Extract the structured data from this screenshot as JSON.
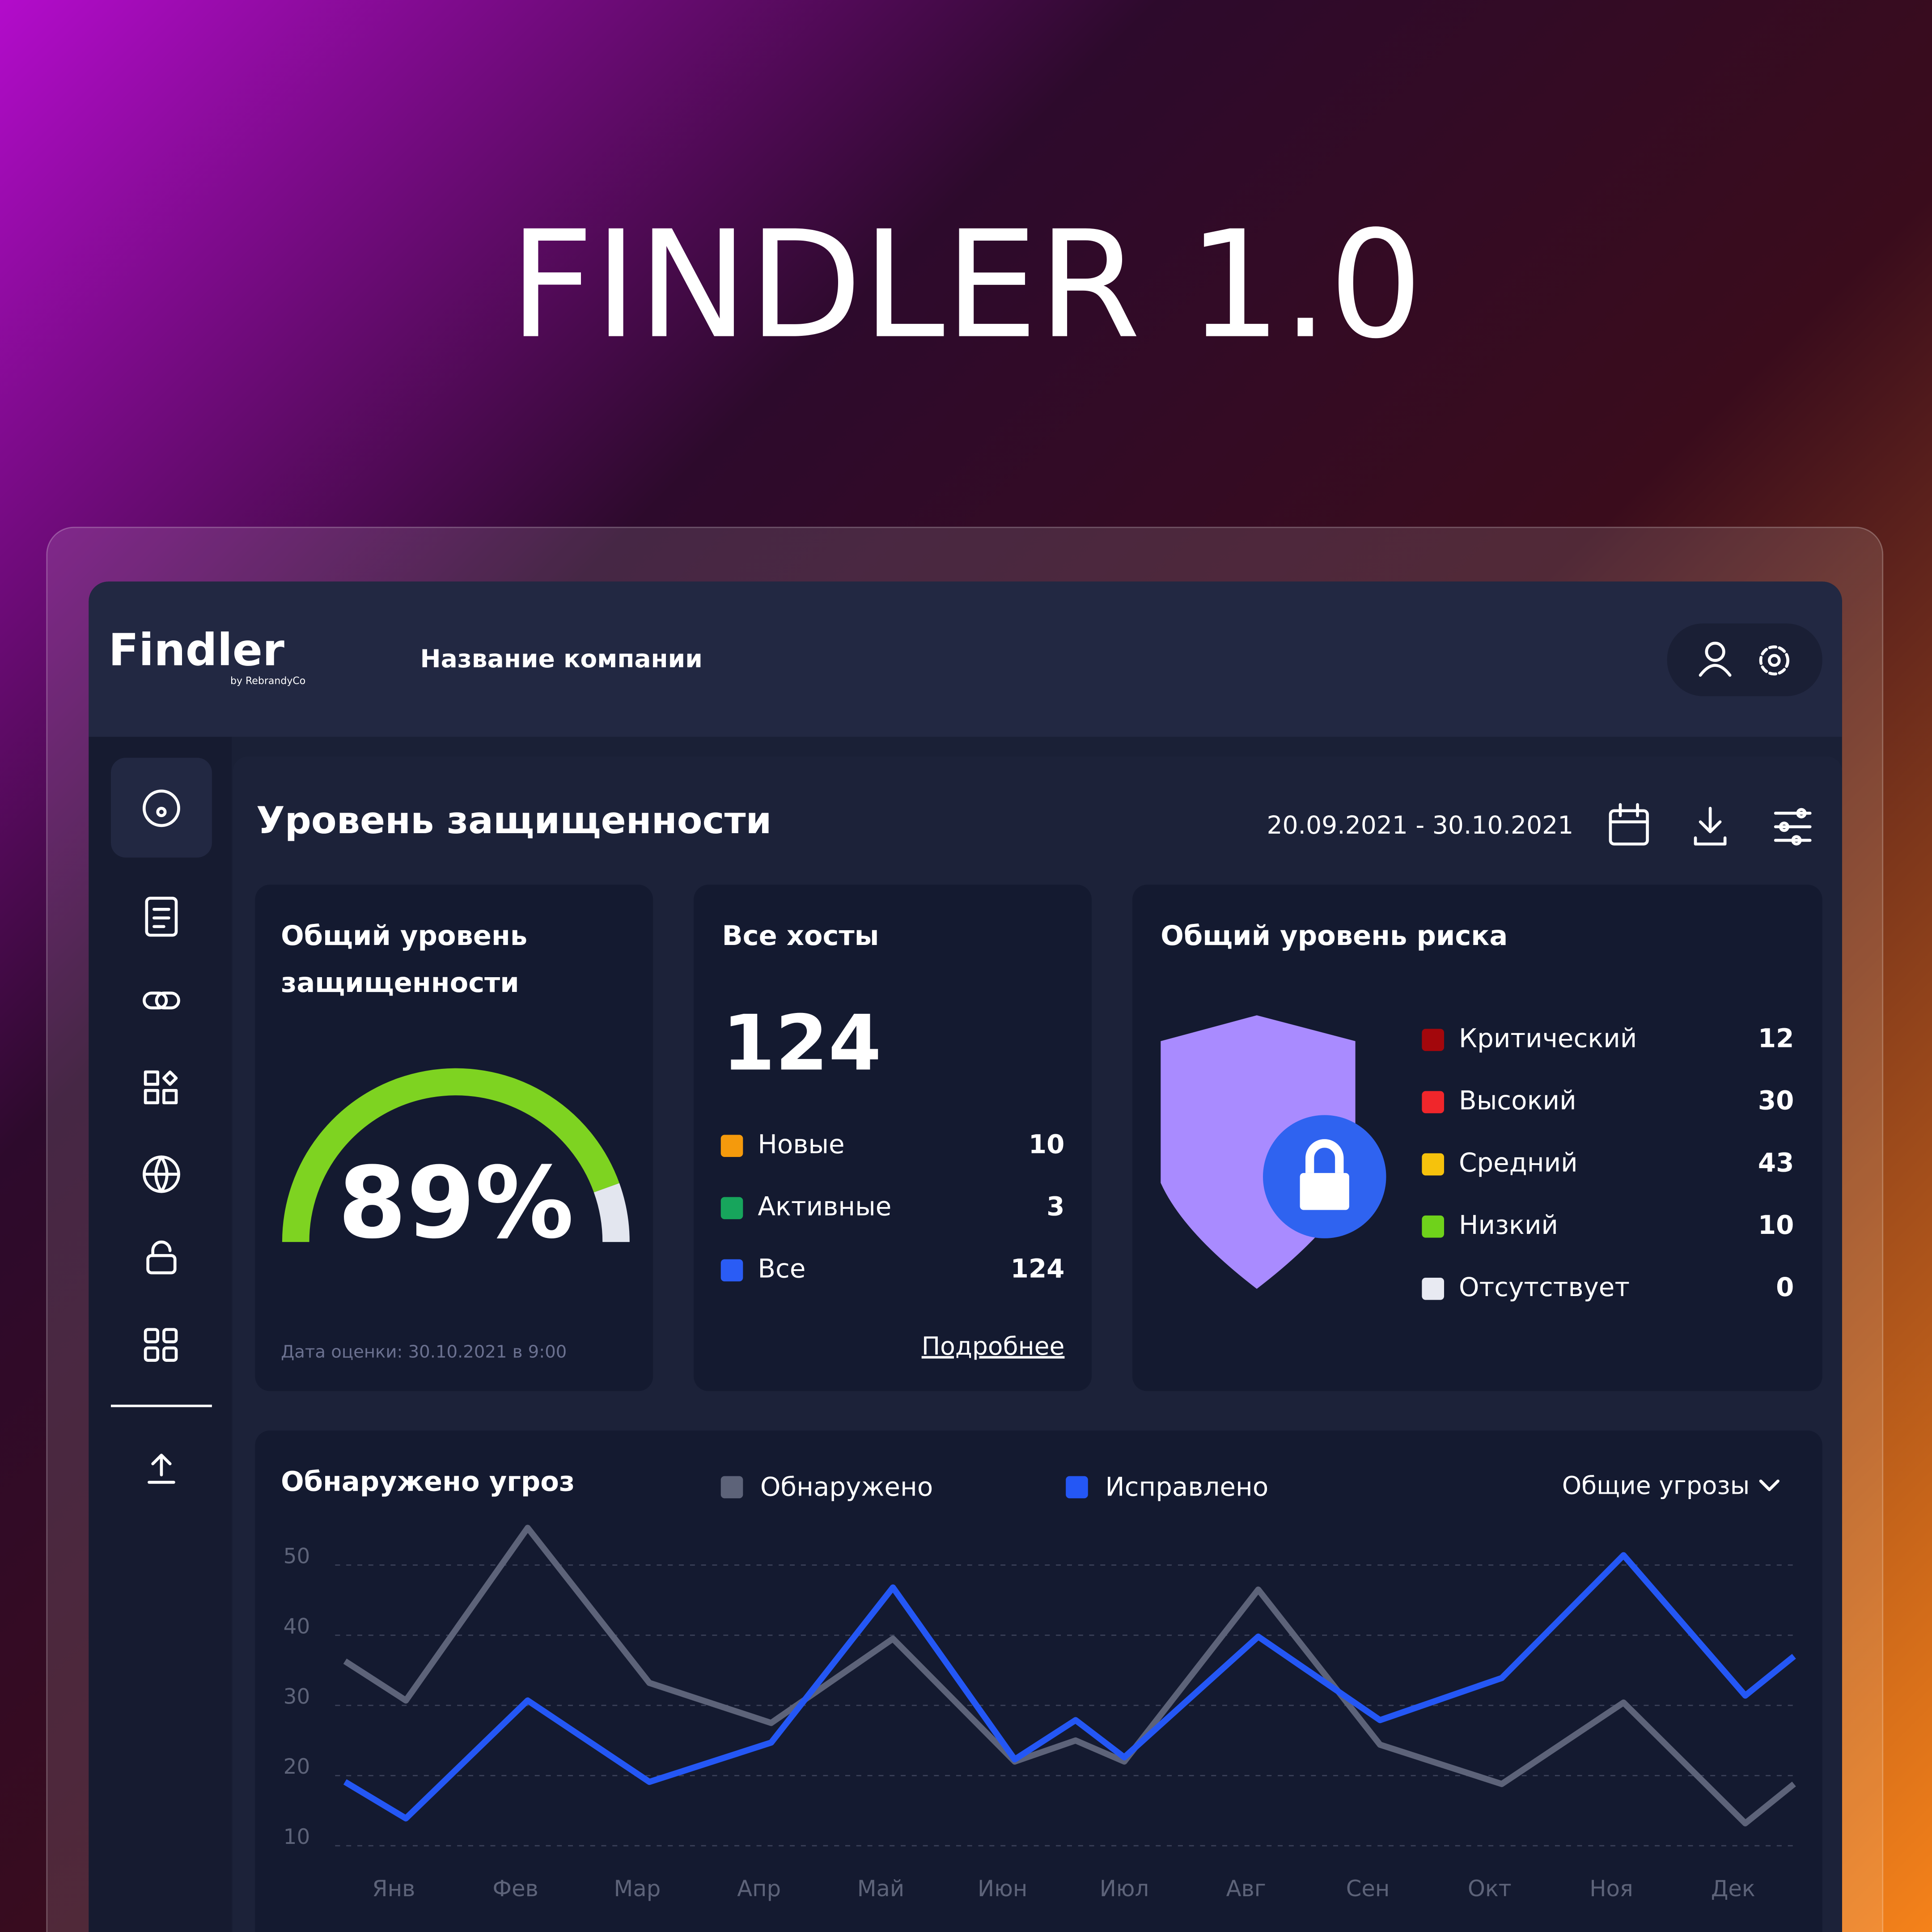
{
  "page": {
    "title": "FINDLER 1.0"
  },
  "header": {
    "logo": "Findler",
    "logo_sub": "by RebrandyCo",
    "company": "Название компании"
  },
  "dashboard": {
    "title": "Уровень защищенности",
    "date_range": "20.09.2021 - 30.10.2021"
  },
  "security_card": {
    "title_lines": [
      "Общий уровень",
      "защищенности"
    ],
    "value": 89,
    "value_label": "89%",
    "max": 100,
    "color": "#7ed321",
    "track_color": "#e3e6ef",
    "footnote": "Дата оценки: 30.10.2021 в 9:00"
  },
  "hosts_card": {
    "title": "Все хосты",
    "total": 124,
    "items": [
      {
        "name": "Новые",
        "value": 10,
        "color": "#f59a0c"
      },
      {
        "name": "Активные",
        "value": 3,
        "color": "#17a55c"
      },
      {
        "name": "Все",
        "value": 124,
        "color": "#2a5cf5"
      }
    ],
    "link": "Подробнее"
  },
  "risk_card": {
    "title": "Общий уровень риска",
    "items": [
      {
        "name": "Критический",
        "value": 12,
        "color": "#a3070c"
      },
      {
        "name": "Высокий",
        "value": 30,
        "color": "#f0262b"
      },
      {
        "name": "Средний",
        "value": 43,
        "color": "#f6c20c"
      },
      {
        "name": "Низкий",
        "value": 10,
        "color": "#6fd21b"
      },
      {
        "name": "Отсутствует",
        "value": 0,
        "color": "#e8eaf2"
      }
    ]
  },
  "threats_chart": {
    "type": "line",
    "title": "Обнаружено угроз",
    "filter": "Общие угрозы",
    "x": [
      0.6,
      1.1,
      2.1,
      3.1,
      4.1,
      5.1,
      6.1,
      6.6,
      7.0,
      8.1,
      9.1,
      10.1,
      11.1,
      12.1,
      12.5
    ],
    "xlim": [
      0.6,
      12.5
    ],
    "xticks": [
      {
        "value": 1,
        "label": "Янв"
      },
      {
        "value": 2,
        "label": "Фев"
      },
      {
        "value": 3,
        "label": "Мар"
      },
      {
        "value": 4,
        "label": "Апр"
      },
      {
        "value": 5,
        "label": "Май"
      },
      {
        "value": 6,
        "label": "Июн"
      },
      {
        "value": 7,
        "label": "Июл"
      },
      {
        "value": 8,
        "label": "Авг"
      },
      {
        "value": 9,
        "label": "Сен"
      },
      {
        "value": 10,
        "label": "Окт"
      },
      {
        "value": 11,
        "label": "Ноя"
      },
      {
        "value": 12,
        "label": "Дек"
      }
    ],
    "ylim": [
      10,
      56
    ],
    "yticks": [
      10,
      20,
      30,
      40,
      50
    ],
    "grid": true,
    "series": [
      {
        "name": "Обнаружено",
        "color": "#5d6379",
        "values": [
          36.3,
          30.7,
          55.3,
          33.2,
          27.5,
          39.5,
          22,
          25,
          22,
          46.5,
          24.4,
          18.8,
          30.4,
          13.2,
          18.8
        ]
      },
      {
        "name": "Исправлено",
        "color": "#2457f5",
        "values": [
          19.1,
          13.9,
          30.7,
          19.1,
          24.7,
          46.8,
          22.3,
          27.9,
          22.6,
          39.8,
          27.9,
          33.9,
          51.4,
          31.4,
          37
        ]
      }
    ]
  }
}
